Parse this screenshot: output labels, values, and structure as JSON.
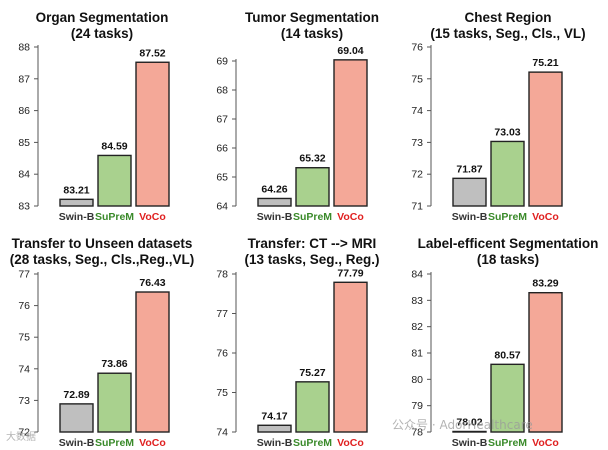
{
  "colors": {
    "Swin-B": "#bfbfbf",
    "SuPreM": "#a9d18e",
    "VoCo": "#f4a898",
    "label_SuPreM": "#3a8a2a",
    "label_VoCo": "#e02020"
  },
  "watermark": {
    "right": "公众号 · AdorHealthcare",
    "left": "大数据"
  },
  "chart_data": [
    {
      "type": "bar",
      "title": "Organ Segmentation",
      "subtitle": "(24 tasks)",
      "categories": [
        "Swin-B",
        "SuPreM",
        "VoCo"
      ],
      "values": [
        83.21,
        84.59,
        87.52
      ],
      "ylim": [
        83,
        88
      ],
      "yticks": [
        83,
        84,
        85,
        86,
        87,
        88
      ]
    },
    {
      "type": "bar",
      "title": "Tumor Segmentation",
      "subtitle": "(14 tasks)",
      "categories": [
        "Swin-B",
        "SuPreM",
        "VoCo"
      ],
      "values": [
        64.26,
        65.32,
        69.04
      ],
      "ylim": [
        64,
        69
      ],
      "yticks": [
        64,
        65,
        66,
        67,
        68,
        69
      ]
    },
    {
      "type": "bar",
      "title": "Chest Region",
      "subtitle": "(15 tasks, Seg., Cls., VL)",
      "categories": [
        "Swin-B",
        "SuPreM",
        "VoCo"
      ],
      "values": [
        71.87,
        73.03,
        75.21
      ],
      "ylim": [
        71,
        76
      ],
      "yticks": [
        71,
        72,
        73,
        74,
        75,
        76
      ]
    },
    {
      "type": "bar",
      "title": "Transfer to Unseen datasets",
      "subtitle": "(28 tasks, Seg., Cls.,Reg.,VL)",
      "categories": [
        "Swin-B",
        "SuPreM",
        "VoCo"
      ],
      "values": [
        72.89,
        73.86,
        76.43
      ],
      "ylim": [
        72,
        77
      ],
      "yticks": [
        72,
        73,
        74,
        75,
        76,
        77
      ]
    },
    {
      "type": "bar",
      "title": "Transfer: CT --> MRI",
      "subtitle": "(13 tasks, Seg., Reg.)",
      "categories": [
        "Swin-B",
        "SuPreM",
        "VoCo"
      ],
      "values": [
        74.17,
        75.27,
        77.79
      ],
      "ylim": [
        74,
        78
      ],
      "yticks": [
        74,
        75,
        76,
        77,
        78
      ]
    },
    {
      "type": "bar",
      "title": "Label-efficent Segmentation",
      "subtitle": "(18 tasks)",
      "categories": [
        "Swin-B",
        "SuPreM",
        "VoCo"
      ],
      "values": [
        78.02,
        80.57,
        83.29
      ],
      "ylim": [
        78,
        84
      ],
      "yticks": [
        78,
        79,
        80,
        81,
        82,
        83,
        84
      ]
    }
  ]
}
